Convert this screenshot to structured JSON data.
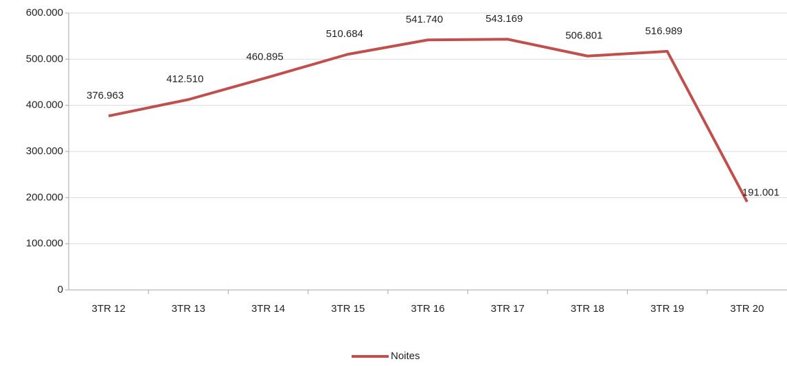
{
  "chart_data": {
    "type": "line",
    "categories": [
      "3TR 12",
      "3TR 13",
      "3TR 14",
      "3TR 15",
      "3TR 16",
      "3TR 17",
      "3TR 18",
      "3TR 19",
      "3TR 20"
    ],
    "series": [
      {
        "name": "Noites",
        "color": "#c0504d",
        "values": [
          376963,
          412510,
          460895,
          510684,
          541740,
          543169,
          506801,
          516989,
          191001
        ],
        "value_labels": [
          "376.963",
          "412.510",
          "460.895",
          "510.684",
          "541.740",
          "543.169",
          "506.801",
          "516.989",
          "191.001"
        ]
      }
    ],
    "ylim": [
      0,
      600000
    ],
    "yticks": [
      0,
      {
        "value": 100000,
        "label": "100.000"
      },
      {
        "value": 200000,
        "label": "200.000"
      },
      {
        "value": 300000,
        "label": "300.000"
      },
      {
        "value": 400000,
        "label": "400.000"
      },
      {
        "value": 500000,
        "label": "500.000"
      },
      {
        "value": 600000,
        "label": "600.000"
      }
    ],
    "grid": true,
    "legend": "bottom"
  }
}
